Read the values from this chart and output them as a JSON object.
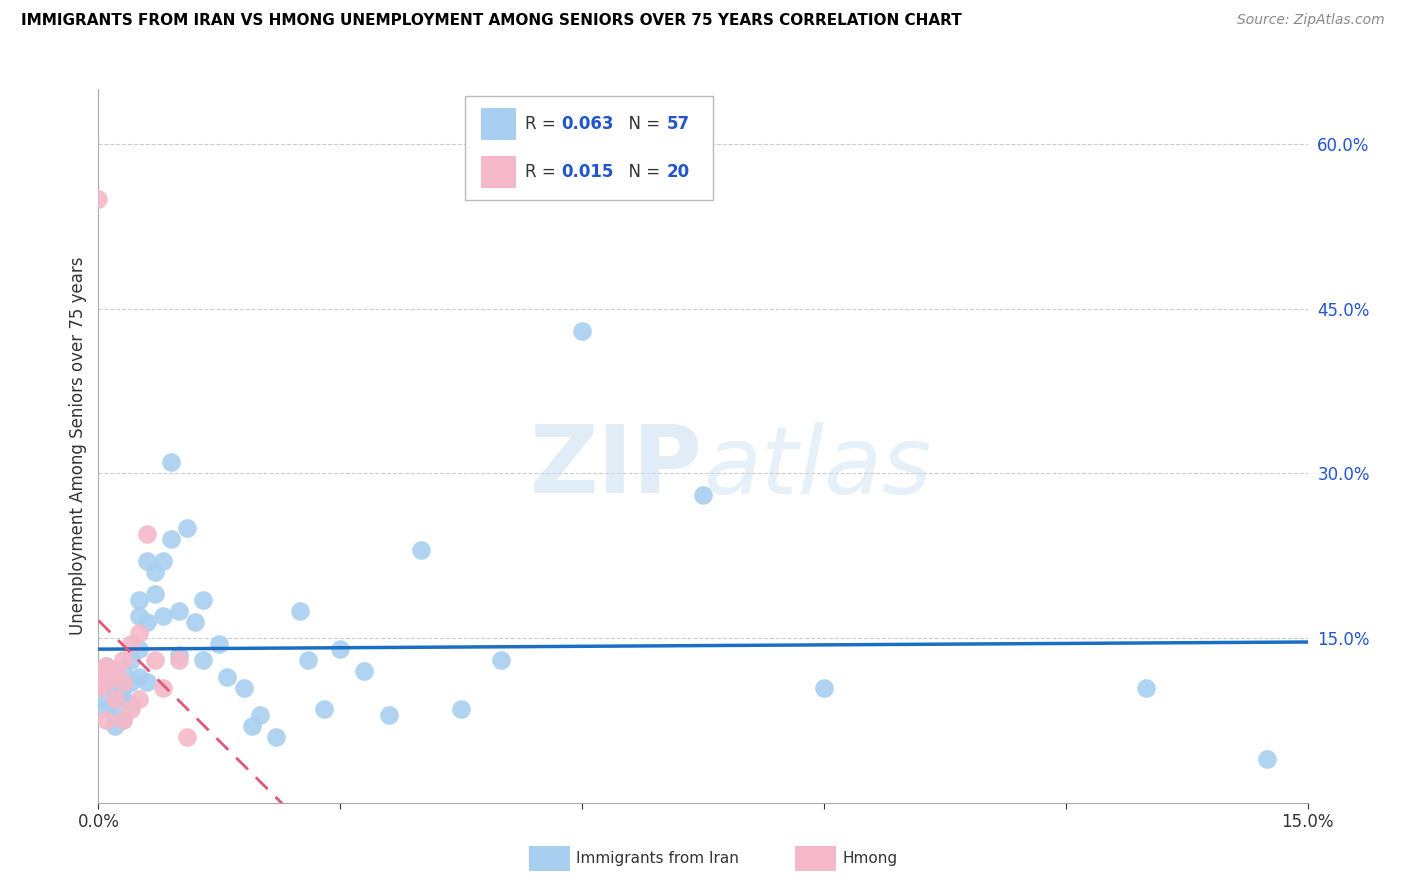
{
  "title": "IMMIGRANTS FROM IRAN VS HMONG UNEMPLOYMENT AMONG SENIORS OVER 75 YEARS CORRELATION CHART",
  "source": "Source: ZipAtlas.com",
  "ylabel": "Unemployment Among Seniors over 75 years",
  "xlim": [
    0.0,
    0.15
  ],
  "ylim": [
    0.0,
    0.65
  ],
  "iran_R": 0.063,
  "iran_N": 57,
  "hmong_R": 0.015,
  "hmong_N": 20,
  "iran_color": "#a8cff0",
  "hmong_color": "#f5b8c8",
  "iran_line_color": "#1a6fc4",
  "hmong_line_color": "#e05878",
  "legend_R_color": "#2255cc",
  "iran_scatter_x": [
    0.0,
    0.0,
    0.001,
    0.001,
    0.001,
    0.001,
    0.002,
    0.002,
    0.002,
    0.002,
    0.002,
    0.003,
    0.003,
    0.003,
    0.003,
    0.004,
    0.004,
    0.004,
    0.005,
    0.005,
    0.005,
    0.005,
    0.006,
    0.006,
    0.006,
    0.007,
    0.007,
    0.008,
    0.008,
    0.009,
    0.009,
    0.01,
    0.01,
    0.011,
    0.012,
    0.013,
    0.013,
    0.015,
    0.016,
    0.018,
    0.019,
    0.02,
    0.022,
    0.025,
    0.026,
    0.028,
    0.03,
    0.033,
    0.036,
    0.04,
    0.045,
    0.05,
    0.06,
    0.075,
    0.09,
    0.13,
    0.145
  ],
  "iran_scatter_y": [
    0.115,
    0.105,
    0.125,
    0.11,
    0.095,
    0.085,
    0.12,
    0.105,
    0.095,
    0.08,
    0.07,
    0.12,
    0.105,
    0.095,
    0.075,
    0.13,
    0.11,
    0.09,
    0.14,
    0.185,
    0.17,
    0.115,
    0.22,
    0.165,
    0.11,
    0.21,
    0.19,
    0.22,
    0.17,
    0.24,
    0.31,
    0.175,
    0.135,
    0.25,
    0.165,
    0.185,
    0.13,
    0.145,
    0.115,
    0.105,
    0.07,
    0.08,
    0.06,
    0.175,
    0.13,
    0.085,
    0.14,
    0.12,
    0.08,
    0.23,
    0.085,
    0.13,
    0.43,
    0.28,
    0.105,
    0.105,
    0.04
  ],
  "hmong_scatter_x": [
    0.0,
    0.0,
    0.0,
    0.001,
    0.001,
    0.001,
    0.002,
    0.002,
    0.003,
    0.003,
    0.003,
    0.004,
    0.004,
    0.005,
    0.005,
    0.006,
    0.007,
    0.008,
    0.01,
    0.011
  ],
  "hmong_scatter_y": [
    0.12,
    0.105,
    0.55,
    0.125,
    0.11,
    0.075,
    0.12,
    0.095,
    0.13,
    0.11,
    0.075,
    0.145,
    0.085,
    0.155,
    0.095,
    0.245,
    0.13,
    0.105,
    0.13,
    0.06
  ]
}
